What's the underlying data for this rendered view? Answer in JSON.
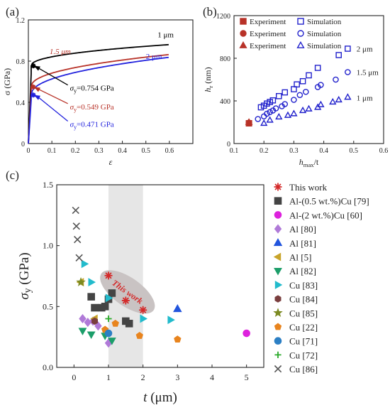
{
  "figure": {
    "panels": [
      "(a)",
      "(b)",
      "(c)"
    ]
  },
  "chart_data": [
    {
      "panel": "(a)",
      "type": "line",
      "xlabel": "ε",
      "ylabel": "σ (GPa)",
      "xlim": [
        0,
        0.7
      ],
      "ylim": [
        0,
        1.2
      ],
      "xticks": [
        "0",
        "0.1",
        "0.2",
        "0.3",
        "0.4",
        "0.5",
        "0.6"
      ],
      "yticks": [
        "0",
        "0.4",
        "0.8",
        "1.2"
      ],
      "series": [
        {
          "name": "1 μm",
          "color": "#000000",
          "sigma_y": 0.754,
          "hardening_k": 0.262,
          "label_at": [
            0.55,
            1.03
          ]
        },
        {
          "name": "1.5 μm",
          "color": "#b83228",
          "sigma_y": 0.549,
          "hardening_k": 0.4,
          "label_at": [
            0.09,
            0.87
          ]
        },
        {
          "name": "2 μm",
          "color": "#2222dd",
          "sigma_y": 0.471,
          "hardening_k": 0.465,
          "label_at": [
            0.5,
            0.82
          ]
        }
      ],
      "annotations": [
        {
          "label": "σ",
          "sub": "y",
          "value": "=0.754 GPa",
          "color": "#000000",
          "point": [
            0.018,
            0.754
          ],
          "text_at": [
            0.18,
            0.54
          ]
        },
        {
          "label": "σ",
          "sub": "y",
          "value": "=0.549 GPa",
          "color": "#b83228",
          "point": [
            0.018,
            0.549
          ],
          "text_at": [
            0.18,
            0.36
          ]
        },
        {
          "label": "σ",
          "sub": "y",
          "value": "=0.471 GPa",
          "color": "#2222dd",
          "point": [
            0.018,
            0.471
          ],
          "text_at": [
            0.18,
            0.19
          ]
        }
      ]
    },
    {
      "panel": "(b)",
      "type": "scatter",
      "xlabel": "h",
      "xlabel_sub": "max",
      "xlabel_suffix": "/t",
      "ylabel": "h",
      "ylabel_sub": "r",
      "ylabel_suffix": " (nm)",
      "xlim": [
        0.1,
        0.6
      ],
      "ylim": [
        0,
        1200
      ],
      "xticks": [
        "0.1",
        "0.2",
        "0.3",
        "0.4",
        "0.5",
        "0.6"
      ],
      "yticks": [
        "0",
        "400",
        "800",
        "1200"
      ],
      "legend": [
        {
          "marker": "square",
          "exp_label": "Experiment",
          "sim_label": "Simulation"
        },
        {
          "marker": "circle",
          "exp_label": "Experiment",
          "sim_label": "Simulation"
        },
        {
          "marker": "triangle",
          "exp_label": "Experiment",
          "sim_label": "Simulation"
        }
      ],
      "series": [
        {
          "name": "2 μm",
          "marker": "square",
          "experiment": [
            [
              0.15,
              190
            ]
          ],
          "simulation": [
            [
              0.19,
              340
            ],
            [
              0.2,
              355
            ],
            [
              0.21,
              375
            ],
            [
              0.22,
              390
            ],
            [
              0.23,
              405
            ],
            [
              0.25,
              445
            ],
            [
              0.27,
              480
            ],
            [
              0.3,
              510
            ],
            [
              0.31,
              555
            ],
            [
              0.33,
              585
            ],
            [
              0.35,
              640
            ],
            [
              0.38,
              710
            ],
            [
              0.45,
              830
            ],
            [
              0.48,
              890
            ]
          ],
          "label_at": [
            0.5,
            890
          ]
        },
        {
          "name": "1.5 μm",
          "marker": "circle",
          "experiment": [
            [
              0.15,
              195
            ]
          ],
          "simulation": [
            [
              0.18,
              230
            ],
            [
              0.2,
              255
            ],
            [
              0.21,
              280
            ],
            [
              0.22,
              295
            ],
            [
              0.23,
              310
            ],
            [
              0.24,
              330
            ],
            [
              0.26,
              350
            ],
            [
              0.27,
              370
            ],
            [
              0.3,
              410
            ],
            [
              0.32,
              455
            ],
            [
              0.34,
              485
            ],
            [
              0.38,
              530
            ],
            [
              0.39,
              550
            ],
            [
              0.44,
              600
            ],
            [
              0.48,
              670
            ]
          ],
          "label_at": [
            0.5,
            670
          ]
        },
        {
          "name": "1 μm",
          "marker": "triangle",
          "experiment": [
            [
              0.15,
              200
            ]
          ],
          "simulation": [
            [
              0.2,
              190
            ],
            [
              0.22,
              220
            ],
            [
              0.25,
              250
            ],
            [
              0.28,
              265
            ],
            [
              0.3,
              280
            ],
            [
              0.33,
              310
            ],
            [
              0.35,
              325
            ],
            [
              0.38,
              340
            ],
            [
              0.39,
              365
            ],
            [
              0.43,
              390
            ],
            [
              0.45,
              410
            ],
            [
              0.48,
              435
            ]
          ],
          "label_at": [
            0.5,
            430
          ]
        }
      ],
      "colors": {
        "experiment": "#b83228",
        "simulation": "#2222cc"
      }
    },
    {
      "panel": "(c)",
      "type": "scatter",
      "xlabel": "t",
      "xlabel_suffix": " (μm)",
      "ylabel": "σ",
      "ylabel_sub": "y",
      "ylabel_suffix": " (GPa)",
      "xlim": [
        -0.5,
        5.5
      ],
      "ylim": [
        0,
        1.5
      ],
      "xticks": [
        "0",
        "1",
        "2",
        "3",
        "4",
        "5"
      ],
      "yticks": [
        "0.0",
        "0.5",
        "1.0",
        "1.5"
      ],
      "band": [
        1,
        2
      ],
      "highlight_label": "This work",
      "series": [
        {
          "name": "This work",
          "marker": "asterisk",
          "color": "#d42a2a",
          "points": [
            [
              1,
              0.754
            ],
            [
              1.5,
              0.549
            ],
            [
              2,
              0.471
            ]
          ]
        },
        {
          "name": "Al-(0.5 wt.%)Cu [79]",
          "marker": "square",
          "color": "#444444",
          "points": [
            [
              0.5,
              0.58
            ],
            [
              0.6,
              0.49
            ],
            [
              0.8,
              0.49
            ],
            [
              0.9,
              0.5
            ],
            [
              1.0,
              0.56
            ],
            [
              1.1,
              0.61
            ],
            [
              1.5,
              0.38
            ],
            [
              1.6,
              0.36
            ]
          ]
        },
        {
          "name": "Al-(2 wt.%)Cu [60]",
          "marker": "circle",
          "color": "#dd22dd",
          "points": [
            [
              5,
              0.28
            ]
          ]
        },
        {
          "name": "Al [80]",
          "marker": "diamond",
          "color": "#b07ad8",
          "points": [
            [
              0.25,
              0.4
            ],
            [
              0.4,
              0.37
            ],
            [
              0.55,
              0.38
            ],
            [
              0.7,
              0.34
            ],
            [
              1.0,
              0.2
            ]
          ]
        },
        {
          "name": "Al [81]",
          "marker": "triangle-up",
          "color": "#2255dd",
          "points": [
            [
              3,
              0.48
            ]
          ]
        },
        {
          "name": "Al [5]",
          "marker": "triangle-left",
          "color": "#c8a42a",
          "points": [
            [
              0.2,
              0.7
            ],
            [
              0.6,
              0.4
            ]
          ]
        },
        {
          "name": "Al [82]",
          "marker": "triangle-down",
          "color": "#1c9e6a",
          "points": [
            [
              0.25,
              0.3
            ],
            [
              0.5,
              0.27
            ],
            [
              0.9,
              0.26
            ],
            [
              1.1,
              0.22
            ]
          ]
        },
        {
          "name": "Cu [83]",
          "marker": "triangle-right",
          "color": "#22bbcc",
          "points": [
            [
              0.3,
              0.85
            ],
            [
              0.5,
              0.7
            ],
            [
              1.0,
              0.57
            ],
            [
              2.0,
              0.4
            ],
            [
              2.8,
              0.39
            ]
          ]
        },
        {
          "name": "Cu [84]",
          "marker": "hexagon",
          "color": "#7a3e3e",
          "points": [
            [
              0.6,
              0.38
            ]
          ]
        },
        {
          "name": "Cu [85]",
          "marker": "star",
          "color": "#7c8a22",
          "points": [
            [
              0.2,
              0.7
            ]
          ]
        },
        {
          "name": "Cu [22]",
          "marker": "pentagon",
          "color": "#e8841e",
          "points": [
            [
              0.9,
              0.31
            ],
            [
              1.2,
              0.36
            ],
            [
              1.9,
              0.26
            ],
            [
              3.0,
              0.23
            ]
          ]
        },
        {
          "name": "Cu [71]",
          "marker": "sphere",
          "color": "#2c7fc4",
          "points": [
            [
              1.0,
              0.28
            ]
          ]
        },
        {
          "name": "Cu [72]",
          "marker": "plus",
          "color": "#2aaa2a",
          "points": [
            [
              1.0,
              0.4
            ]
          ]
        },
        {
          "name": "Cu [86]",
          "marker": "x",
          "color": "#555555",
          "points": [
            [
              0.05,
              1.29
            ],
            [
              0.07,
              1.16
            ],
            [
              0.1,
              1.05
            ],
            [
              0.15,
              0.9
            ]
          ]
        }
      ]
    }
  ]
}
